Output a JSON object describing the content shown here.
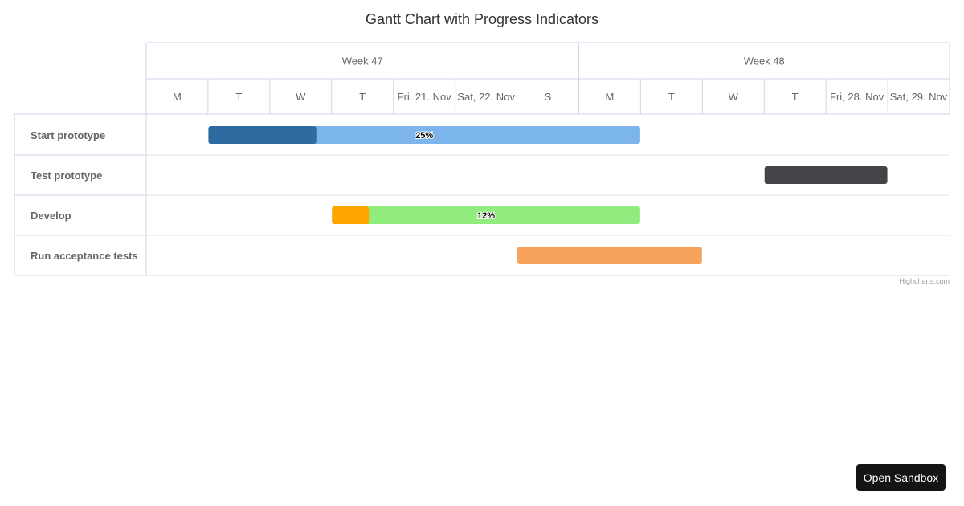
{
  "chart_data": {
    "type": "gantt",
    "title": "Gantt Chart with Progress Indicators",
    "x_axis": {
      "weeks": [
        {
          "label": "Week 47",
          "start": "2025-11-17",
          "end": "2025-11-24"
        },
        {
          "label": "Week 48",
          "start": "2025-11-24",
          "end": "2025-11-30"
        }
      ],
      "days": [
        {
          "date": "2025-11-17",
          "label": "M"
        },
        {
          "date": "2025-11-18",
          "label": "T"
        },
        {
          "date": "2025-11-19",
          "label": "W"
        },
        {
          "date": "2025-11-20",
          "label": "T"
        },
        {
          "date": "2025-11-21",
          "label": "Fri, 21. Nov"
        },
        {
          "date": "2025-11-22",
          "label": "Sat, 22. Nov"
        },
        {
          "date": "2025-11-23",
          "label": "S"
        },
        {
          "date": "2025-11-24",
          "label": "M"
        },
        {
          "date": "2025-11-25",
          "label": "T"
        },
        {
          "date": "2025-11-26",
          "label": "W"
        },
        {
          "date": "2025-11-27",
          "label": "T"
        },
        {
          "date": "2025-11-28",
          "label": "Fri, 28. Nov"
        },
        {
          "date": "2025-11-29",
          "label": "Sat, 29. Nov"
        }
      ],
      "min": "2025-11-17",
      "max": "2025-11-30"
    },
    "tasks": [
      {
        "name": "Start prototype",
        "start": "2025-11-18",
        "end": "2025-11-25",
        "completed": 0.25,
        "progress_label": "25%",
        "color": "#7cb5ec",
        "progress_color": "#2f6aa0"
      },
      {
        "name": "Test prototype",
        "start": "2025-11-27",
        "end": "2025-11-29",
        "completed": null,
        "progress_label": "",
        "color": "#434348",
        "progress_color": null
      },
      {
        "name": "Develop",
        "start": "2025-11-20",
        "end": "2025-11-25",
        "completed": 0.12,
        "progress_label": "12%",
        "color": "#90ed7d",
        "progress_color": "#ffa500"
      },
      {
        "name": "Run acceptance tests",
        "start": "2025-11-23",
        "end": "2025-11-26",
        "completed": null,
        "progress_label": "",
        "color": "#f7a35c",
        "progress_color": null
      }
    ],
    "grid": true,
    "colors": {
      "grid_line": "#ccd6eb",
      "row_line": "#e6e6e6",
      "label_text": "#666666"
    }
  },
  "credits": "Highcharts.com",
  "sandbox_button": "Open Sandbox"
}
